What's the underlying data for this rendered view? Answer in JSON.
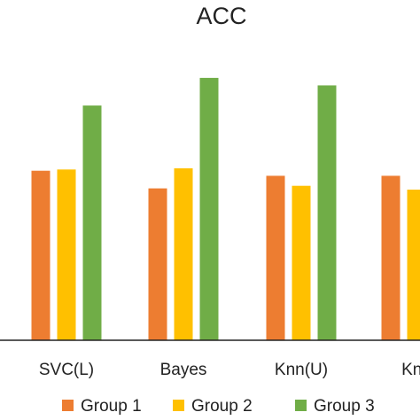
{
  "chart_data": {
    "type": "bar",
    "title": "ACC",
    "xlabel": "",
    "ylabel": "",
    "categories": [
      "SVC(L)",
      "Bayes",
      "Knn(U)",
      "Knn"
    ],
    "series": [
      {
        "name": "Group 1",
        "color": "#ED7D31",
        "values": [
          0.675,
          0.605,
          0.655,
          0.655
        ]
      },
      {
        "name": "Group 2",
        "color": "#FFC000",
        "values": [
          0.68,
          0.685,
          0.615,
          0.6
        ]
      },
      {
        "name": "Group 3",
        "color": "#70AD47",
        "values": [
          0.935,
          1.045,
          1.015,
          null
        ]
      }
    ],
    "ylim": [
      0,
      1.2
    ],
    "grid": false,
    "legend_position": "bottom"
  }
}
